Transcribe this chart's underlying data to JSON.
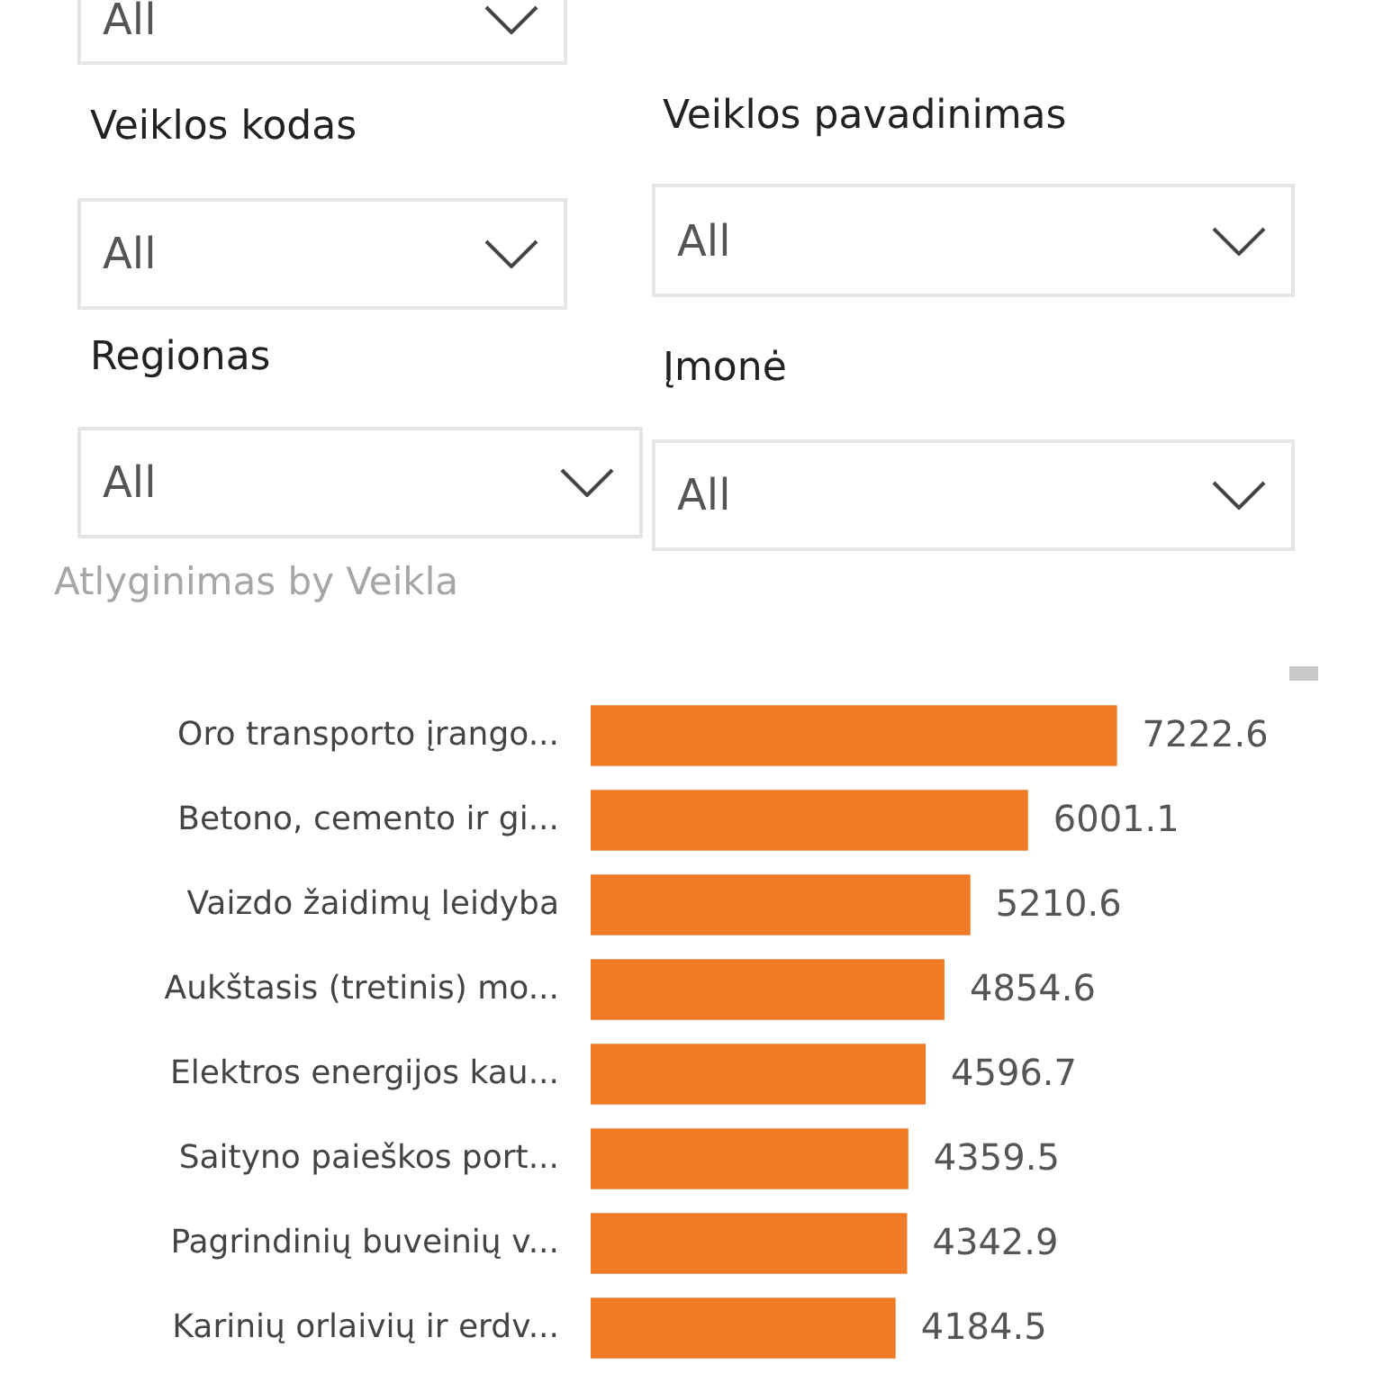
{
  "chart_data": [
    {
      "type": "other",
      "annotations": [
        "All",
        "Veiklos kodas",
        "All",
        "Veiklos pavadinimas",
        "All",
        "Regionas",
        "All",
        "Įmonė",
        "All"
      ]
    },
    {
      "type": "bar",
      "orientation": "horizontal",
      "title": "Atlyginimas by Veikla",
      "categories": [
        "Oro transporto įrango...",
        "Betono, cemento ir gi...",
        "Vaizdo žaidimų leidyba",
        "Aukštasis (tretinis) mo...",
        "Elektros energijos kau...",
        "Saityno paieškos port...",
        "Pagrindinių buveinių v...",
        "Karinių orlaivių ir erdv..."
      ],
      "values": [
        7222.6,
        6001.1,
        5210.6,
        4854.6,
        4596.7,
        4359.5,
        4342.9,
        4184.5
      ],
      "color": "#f07b26",
      "data_labels": true
    }
  ]
}
